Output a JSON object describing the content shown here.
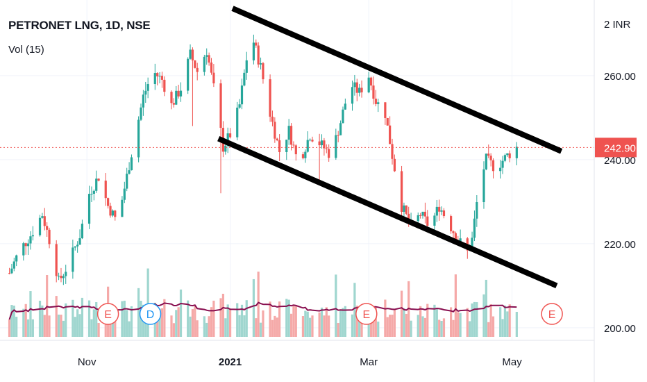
{
  "chart_data": {
    "type": "candlestick",
    "title": "PETRONET LNG, 1D, NSE",
    "volume_label": "Vol (15)",
    "price_axis": {
      "ticks": [
        200,
        220,
        240,
        260
      ],
      "tick_labels": [
        "200.00",
        "220.00",
        "240.00",
        "260.00"
      ],
      "top_label": "2 INR",
      "range": [
        197,
        278
      ]
    },
    "last_price": {
      "value": 242.9,
      "label": "242.90",
      "color": "#ef5350"
    },
    "x_axis": {
      "labels": [
        "Nov",
        "2021",
        "Mar",
        "May"
      ],
      "dates": [
        "2020-11-01",
        "2021-01-01",
        "2021-03-01",
        "2021-05-01"
      ],
      "range": [
        "2020-09-25",
        "2021-06-05"
      ]
    },
    "colors": {
      "up": "#26a69a",
      "down": "#ef5350",
      "vol_up": "#9fd6cf",
      "vol_down": "#f5a9a8",
      "vol_ma": "#880e4f",
      "trendline": "#000000"
    },
    "close_path": [
      [
        "2020-09-29",
        213
      ],
      [
        "2020-10-03",
        218
      ],
      [
        "2020-10-08",
        222
      ],
      [
        "2020-10-13",
        227
      ],
      [
        "2020-10-17",
        219
      ],
      [
        "2020-10-20",
        211
      ],
      [
        "2020-10-24",
        215
      ],
      [
        "2020-10-29",
        222
      ],
      [
        "2020-11-02",
        232
      ],
      [
        "2020-11-06",
        236
      ],
      [
        "2020-11-10",
        229
      ],
      [
        "2020-11-14",
        225
      ],
      [
        "2020-11-18",
        236
      ],
      [
        "2020-11-22",
        247
      ],
      [
        "2020-11-25",
        255
      ],
      [
        "2020-11-29",
        261
      ],
      [
        "2020-12-03",
        259
      ],
      [
        "2020-12-07",
        253
      ],
      [
        "2020-12-11",
        257
      ],
      [
        "2020-12-15",
        265
      ],
      [
        "2020-12-18",
        261
      ],
      [
        "2020-12-22",
        266
      ],
      [
        "2020-12-26",
        254
      ],
      [
        "2020-12-29",
        243
      ],
      [
        "2021-01-02",
        247
      ],
      [
        "2021-01-05",
        253
      ],
      [
        "2021-01-08",
        264
      ],
      [
        "2021-01-11",
        268
      ],
      [
        "2021-01-14",
        262
      ],
      [
        "2021-01-18",
        251
      ],
      [
        "2021-01-22",
        242
      ],
      [
        "2021-01-26",
        247
      ],
      [
        "2021-01-30",
        239
      ],
      [
        "2021-02-04",
        246
      ],
      [
        "2021-02-08",
        244
      ],
      [
        "2021-02-13",
        241
      ],
      [
        "2021-02-17",
        249
      ],
      [
        "2021-02-21",
        258
      ],
      [
        "2021-02-25",
        256
      ],
      [
        "2021-03-01",
        260
      ],
      [
        "2021-03-04",
        254
      ],
      [
        "2021-03-08",
        251
      ],
      [
        "2021-03-11",
        241
      ],
      [
        "2021-03-15",
        229
      ],
      [
        "2021-03-19",
        224
      ],
      [
        "2021-03-23",
        227
      ],
      [
        "2021-03-27",
        224
      ],
      [
        "2021-03-31",
        229
      ],
      [
        "2021-04-04",
        225
      ],
      [
        "2021-04-08",
        221
      ],
      [
        "2021-04-12",
        218
      ],
      [
        "2021-04-14",
        221
      ],
      [
        "2021-04-17",
        234
      ],
      [
        "2021-04-20",
        240
      ],
      [
        "2021-04-24",
        238
      ],
      [
        "2021-04-29",
        241
      ],
      [
        "2021-05-03",
        242.9
      ]
    ],
    "spikes": [
      [
        "2020-12-16",
        248
      ],
      [
        "2020-12-28",
        232
      ],
      [
        "2021-01-30",
        240
      ],
      [
        "2021-02-08",
        234
      ],
      [
        "2021-04-18",
        217
      ]
    ],
    "earnings_markers": [
      {
        "label": "E",
        "date": "2020-11-10",
        "color": "#ef5350"
      },
      {
        "label": "D",
        "date": "2020-11-28",
        "color": "#2196f3"
      },
      {
        "label": "E",
        "date": "2021-02-28",
        "color": "#ef5350"
      },
      {
        "label": "E",
        "date": "2021-05-18",
        "color": "#ef5350"
      }
    ],
    "trendlines": [
      {
        "name": "upper",
        "from": [
          "2021-01-02",
          276
        ],
        "to": [
          "2021-05-22",
          242
        ]
      },
      {
        "name": "lower",
        "from": [
          "2020-12-27",
          245
        ],
        "to": [
          "2021-05-20",
          210
        ]
      }
    ]
  }
}
